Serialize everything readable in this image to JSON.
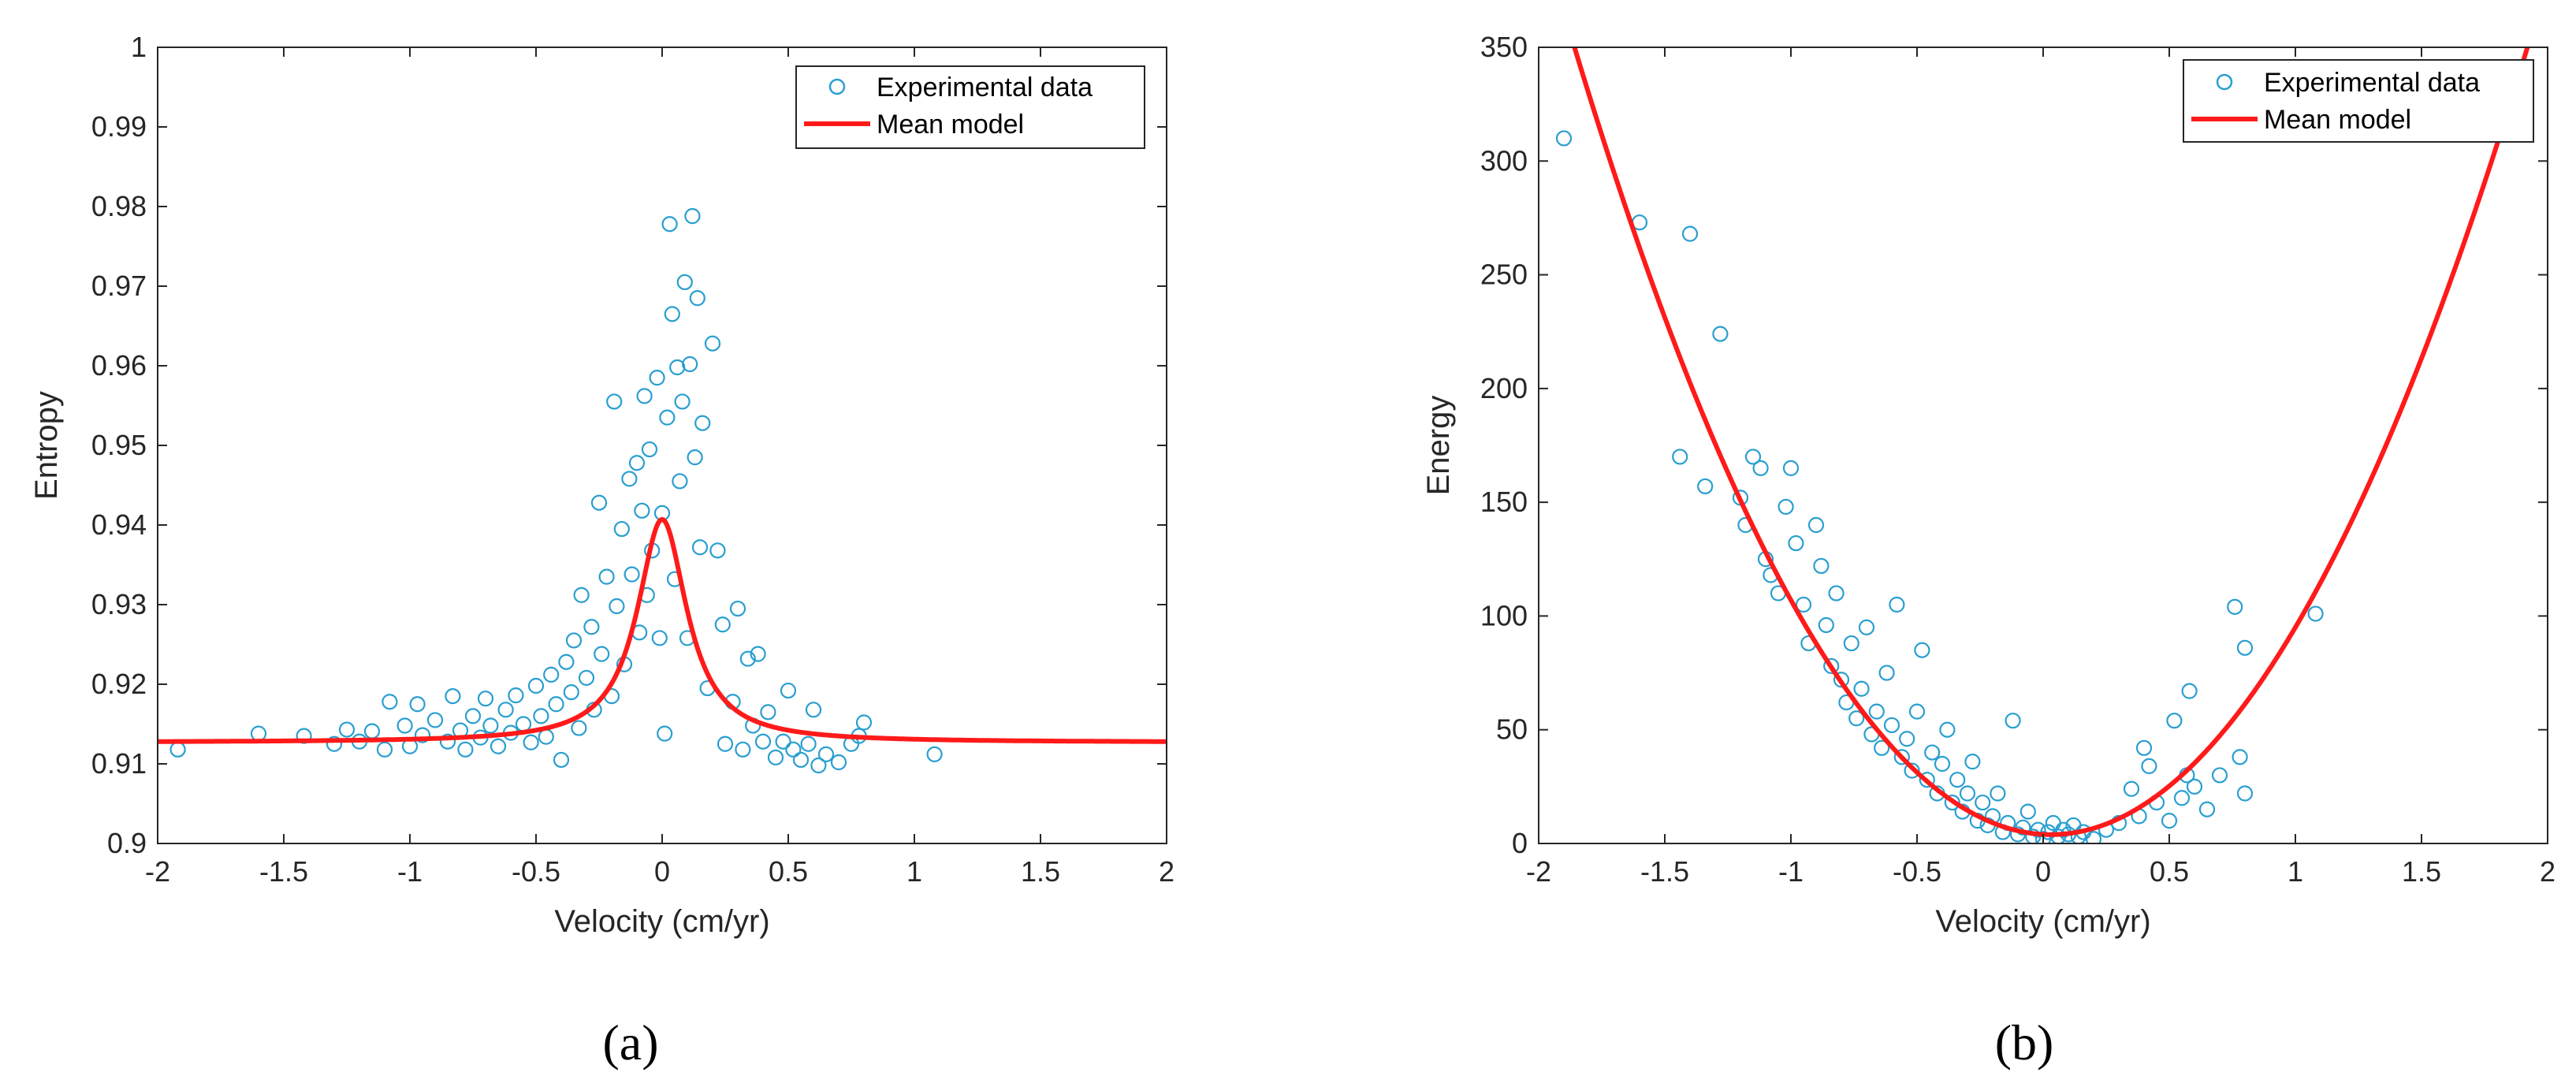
{
  "chart_data": [
    {
      "type": "scatter",
      "panel_label": "(a)",
      "xlabel": "Velocity (cm/yr)",
      "ylabel": "Entropy",
      "xlim": [
        -2,
        2
      ],
      "ylim": [
        0.9,
        1
      ],
      "xticks": [
        -2,
        -1.5,
        -1,
        -0.5,
        0,
        0.5,
        1,
        1.5,
        2
      ],
      "xtick_labels": [
        "-2",
        "-1.5",
        "-1",
        "-0.5",
        "0",
        "0.5",
        "1",
        "1.5",
        "2"
      ],
      "yticks": [
        0.9,
        0.91,
        0.92,
        0.93,
        0.94,
        0.95,
        0.96,
        0.97,
        0.98,
        0.99,
        1
      ],
      "ytick_labels": [
        "0.9",
        "0.91",
        "0.92",
        "0.93",
        "0.94",
        "0.95",
        "0.96",
        "0.97",
        "0.98",
        "0.99",
        "1"
      ],
      "legend": [
        "Experimental data",
        "Mean model"
      ],
      "legend_position": "top-right",
      "colors": {
        "scatter": "#2a9fd0",
        "model": "#ff1a1a",
        "axis": "#262626"
      },
      "model": {
        "kind": "lorentzian",
        "baseline": 0.9127,
        "peak": 0.9407,
        "center": 0,
        "width": 0.12
      },
      "series": [
        {
          "name": "Experimental data",
          "points": [
            [
              -1.92,
              0.9118
            ],
            [
              -1.6,
              0.9138
            ],
            [
              -1.42,
              0.9135
            ],
            [
              -1.3,
              0.9125
            ],
            [
              -1.25,
              0.9143
            ],
            [
              -1.2,
              0.9128
            ],
            [
              -1.15,
              0.9141
            ],
            [
              -1.1,
              0.9118
            ],
            [
              -1.08,
              0.9178
            ],
            [
              -1.02,
              0.9148
            ],
            [
              -1.0,
              0.9122
            ],
            [
              -0.97,
              0.9175
            ],
            [
              -0.95,
              0.9136
            ],
            [
              -0.9,
              0.9155
            ],
            [
              -0.85,
              0.9128
            ],
            [
              -0.83,
              0.9185
            ],
            [
              -0.8,
              0.9142
            ],
            [
              -0.78,
              0.9118
            ],
            [
              -0.75,
              0.916
            ],
            [
              -0.72,
              0.9133
            ],
            [
              -0.7,
              0.9182
            ],
            [
              -0.68,
              0.9148
            ],
            [
              -0.65,
              0.9122
            ],
            [
              -0.62,
              0.9168
            ],
            [
              -0.6,
              0.9139
            ],
            [
              -0.58,
              0.9186
            ],
            [
              -0.55,
              0.915
            ],
            [
              -0.52,
              0.9127
            ],
            [
              -0.5,
              0.9198
            ],
            [
              -0.48,
              0.916
            ],
            [
              -0.46,
              0.9134
            ],
            [
              -0.44,
              0.9212
            ],
            [
              -0.42,
              0.9175
            ],
            [
              -0.4,
              0.9105
            ],
            [
              -0.38,
              0.9228
            ],
            [
              -0.36,
              0.919
            ],
            [
              -0.35,
              0.9255
            ],
            [
              -0.33,
              0.9145
            ],
            [
              -0.32,
              0.9312
            ],
            [
              -0.3,
              0.9208
            ],
            [
              -0.28,
              0.9272
            ],
            [
              -0.27,
              0.9168
            ],
            [
              -0.25,
              0.9428
            ],
            [
              -0.24,
              0.9238
            ],
            [
              -0.22,
              0.9335
            ],
            [
              -0.2,
              0.9185
            ],
            [
              -0.19,
              0.9555
            ],
            [
              -0.18,
              0.9298
            ],
            [
              -0.16,
              0.9395
            ],
            [
              -0.15,
              0.9225
            ],
            [
              -0.13,
              0.9458
            ],
            [
              -0.12,
              0.9338
            ],
            [
              -0.1,
              0.9478
            ],
            [
              -0.09,
              0.9265
            ],
            [
              -0.08,
              0.9418
            ],
            [
              -0.07,
              0.9562
            ],
            [
              -0.06,
              0.9312
            ],
            [
              -0.05,
              0.9495
            ],
            [
              -0.04,
              0.9368
            ],
            [
              -0.02,
              0.9585
            ],
            [
              -0.01,
              0.9258
            ],
            [
              0.0,
              0.9415
            ],
            [
              0.01,
              0.9138
            ],
            [
              0.02,
              0.9535
            ],
            [
              0.03,
              0.9778
            ],
            [
              0.04,
              0.9665
            ],
            [
              0.05,
              0.9332
            ],
            [
              0.06,
              0.9598
            ],
            [
              0.07,
              0.9455
            ],
            [
              0.08,
              0.9555
            ],
            [
              0.09,
              0.9705
            ],
            [
              0.1,
              0.9258
            ],
            [
              0.11,
              0.9602
            ],
            [
              0.12,
              0.9788
            ],
            [
              0.13,
              0.9485
            ],
            [
              0.14,
              0.9685
            ],
            [
              0.15,
              0.9372
            ],
            [
              0.16,
              0.9528
            ],
            [
              0.18,
              0.9195
            ],
            [
              0.2,
              0.9628
            ],
            [
              0.22,
              0.9368
            ],
            [
              0.24,
              0.9275
            ],
            [
              0.25,
              0.9125
            ],
            [
              0.28,
              0.9178
            ],
            [
              0.3,
              0.9295
            ],
            [
              0.32,
              0.9118
            ],
            [
              0.34,
              0.9232
            ],
            [
              0.36,
              0.9148
            ],
            [
              0.38,
              0.9238
            ],
            [
              0.4,
              0.9128
            ],
            [
              0.42,
              0.9165
            ],
            [
              0.45,
              0.9108
            ],
            [
              0.48,
              0.9128
            ],
            [
              0.5,
              0.9192
            ],
            [
              0.52,
              0.9118
            ],
            [
              0.55,
              0.9105
            ],
            [
              0.58,
              0.9125
            ],
            [
              0.6,
              0.9168
            ],
            [
              0.62,
              0.9098
            ],
            [
              0.65,
              0.9112
            ],
            [
              0.7,
              0.9102
            ],
            [
              0.75,
              0.9125
            ],
            [
              0.78,
              0.9135
            ],
            [
              0.8,
              0.9152
            ],
            [
              1.08,
              0.9112
            ]
          ]
        },
        {
          "name": "Mean model"
        }
      ]
    },
    {
      "type": "scatter",
      "panel_label": "(b)",
      "xlabel": "Velocity (cm/yr)",
      "ylabel": "Energy",
      "xlim": [
        -2,
        2
      ],
      "ylim": [
        0,
        350
      ],
      "xticks": [
        -2,
        -1.5,
        -1,
        -0.5,
        0,
        0.5,
        1,
        1.5,
        2
      ],
      "xtick_labels": [
        "-2",
        "-1.5",
        "-1",
        "-0.5",
        "0",
        "0.5",
        "1",
        "1.5",
        "2"
      ],
      "yticks": [
        0,
        50,
        100,
        150,
        200,
        250,
        300,
        350
      ],
      "ytick_labels": [
        "0",
        "50",
        "100",
        "150",
        "200",
        "250",
        "300",
        "350"
      ],
      "legend": [
        "Experimental data",
        "Mean model"
      ],
      "legend_position": "top-right",
      "colors": {
        "scatter": "#2a9fd0",
        "model": "#ff1a1a",
        "axis": "#262626"
      },
      "model": {
        "kind": "quadratic",
        "a": 97,
        "b": -6,
        "c": 4
      },
      "series": [
        {
          "name": "Experimental data",
          "points": [
            [
              -1.9,
              310
            ],
            [
              -1.6,
              273
            ],
            [
              -1.4,
              268
            ],
            [
              -1.28,
              224
            ],
            [
              -1.44,
              170
            ],
            [
              -1.34,
              157
            ],
            [
              -1.2,
              152
            ],
            [
              -1.18,
              140
            ],
            [
              -1.15,
              170
            ],
            [
              -1.12,
              165
            ],
            [
              -1.1,
              125
            ],
            [
              -1.08,
              118
            ],
            [
              -1.05,
              110
            ],
            [
              -1.02,
              148
            ],
            [
              -1.0,
              165
            ],
            [
              -0.98,
              132
            ],
            [
              -0.95,
              105
            ],
            [
              -0.93,
              88
            ],
            [
              -0.9,
              140
            ],
            [
              -0.88,
              122
            ],
            [
              -0.86,
              96
            ],
            [
              -0.84,
              78
            ],
            [
              -0.82,
              110
            ],
            [
              -0.8,
              72
            ],
            [
              -0.78,
              62
            ],
            [
              -0.76,
              88
            ],
            [
              -0.74,
              55
            ],
            [
              -0.72,
              68
            ],
            [
              -0.7,
              95
            ],
            [
              -0.68,
              48
            ],
            [
              -0.66,
              58
            ],
            [
              -0.64,
              42
            ],
            [
              -0.62,
              75
            ],
            [
              -0.6,
              52
            ],
            [
              -0.58,
              105
            ],
            [
              -0.56,
              38
            ],
            [
              -0.54,
              46
            ],
            [
              -0.52,
              32
            ],
            [
              -0.5,
              58
            ],
            [
              -0.48,
              85
            ],
            [
              -0.46,
              28
            ],
            [
              -0.44,
              40
            ],
            [
              -0.42,
              22
            ],
            [
              -0.4,
              35
            ],
            [
              -0.38,
              50
            ],
            [
              -0.36,
              18
            ],
            [
              -0.34,
              28
            ],
            [
              -0.32,
              14
            ],
            [
              -0.3,
              22
            ],
            [
              -0.28,
              36
            ],
            [
              -0.26,
              10
            ],
            [
              -0.24,
              18
            ],
            [
              -0.22,
              8
            ],
            [
              -0.2,
              12
            ],
            [
              -0.18,
              22
            ],
            [
              -0.16,
              5
            ],
            [
              -0.14,
              9
            ],
            [
              -0.12,
              54
            ],
            [
              -0.1,
              4
            ],
            [
              -0.08,
              7
            ],
            [
              -0.06,
              14
            ],
            [
              -0.04,
              3
            ],
            [
              -0.02,
              6
            ],
            [
              0.0,
              2
            ],
            [
              0.02,
              5
            ],
            [
              0.04,
              9
            ],
            [
              0.06,
              3
            ],
            [
              0.08,
              6
            ],
            [
              0.1,
              4
            ],
            [
              0.12,
              8
            ],
            [
              0.14,
              3
            ],
            [
              0.16,
              5
            ],
            [
              0.2,
              2
            ],
            [
              0.25,
              6
            ],
            [
              0.3,
              9
            ],
            [
              0.35,
              24
            ],
            [
              0.38,
              12
            ],
            [
              0.4,
              42
            ],
            [
              0.42,
              34
            ],
            [
              0.45,
              18
            ],
            [
              0.5,
              10
            ],
            [
              0.52,
              54
            ],
            [
              0.55,
              20
            ],
            [
              0.57,
              30
            ],
            [
              0.58,
              67
            ],
            [
              0.6,
              25
            ],
            [
              0.65,
              15
            ],
            [
              0.7,
              30
            ],
            [
              0.76,
              104
            ],
            [
              0.78,
              38
            ],
            [
              0.8,
              86
            ],
            [
              0.8,
              22
            ],
            [
              1.08,
              101
            ]
          ]
        },
        {
          "name": "Mean model"
        }
      ]
    }
  ]
}
